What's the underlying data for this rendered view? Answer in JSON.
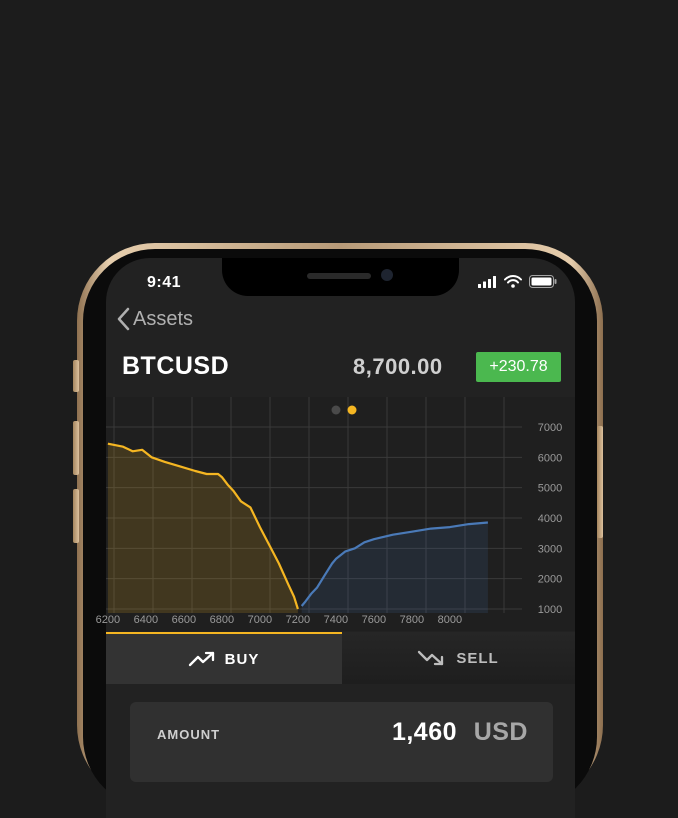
{
  "status_bar": {
    "time": "9:41"
  },
  "nav": {
    "back_label": "Assets"
  },
  "ticker": {
    "pair": "BTCUSD",
    "price": "8,700.00",
    "change": "+230.78"
  },
  "pager": {
    "pages": 2,
    "active": 1
  },
  "colors": {
    "accent": "#f5b622",
    "bid_line": "#f5b622",
    "ask_line": "#4a7ab8",
    "positive": "#4bb84f",
    "background": "#1c1c1c"
  },
  "chart_data": {
    "type": "area",
    "x_ticks": [
      "6200",
      "6400",
      "6600",
      "6800",
      "7000",
      "7200",
      "7400",
      "7600",
      "7800",
      "8000"
    ],
    "y_ticks": [
      "7000",
      "6000",
      "5000",
      "4000",
      "3000",
      "2000",
      "1000"
    ],
    "grid": true,
    "series": [
      {
        "x": [
          6200,
          6280,
          6330,
          6380,
          6430,
          6500,
          6580,
          6660,
          6720,
          6780,
          6800,
          6830,
          6860,
          6900,
          6950,
          7000,
          7050,
          7100,
          7150,
          7180,
          7200
        ],
        "y": [
          6450,
          6350,
          6200,
          6250,
          6000,
          5850,
          5700,
          5550,
          5450,
          5450,
          5350,
          5100,
          4900,
          4550,
          4350,
          3700,
          3100,
          2500,
          1800,
          1400,
          1000
        ]
      },
      {
        "x": [
          7220,
          7240,
          7270,
          7300,
          7340,
          7380,
          7400,
          7450,
          7500,
          7550,
          7600,
          7700,
          7800,
          7900,
          8000,
          8100,
          8200
        ],
        "y": [
          1100,
          1250,
          1500,
          1700,
          2100,
          2500,
          2650,
          2900,
          3000,
          3200,
          3300,
          3450,
          3550,
          3650,
          3700,
          3800,
          3850
        ]
      }
    ]
  },
  "trade": {
    "buy_label": "BUY",
    "sell_label": "SELL",
    "active_tab": "buy"
  },
  "amount": {
    "label": "AMOUNT",
    "value": "1,460",
    "unit": "USD"
  }
}
